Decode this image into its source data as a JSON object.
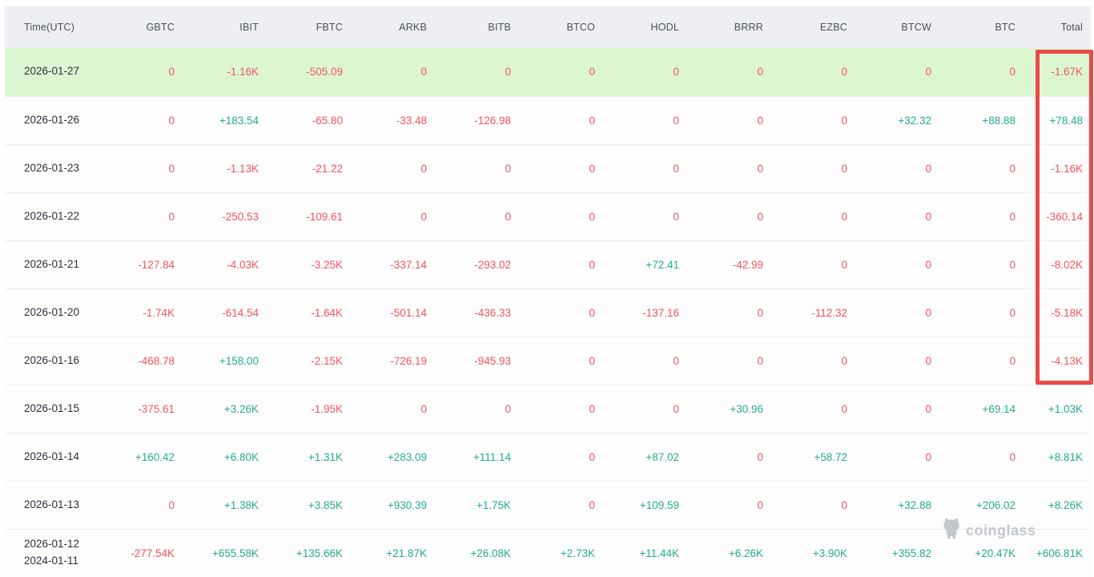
{
  "table": {
    "columns": [
      "Time(UTC)",
      "GBTC",
      "IBIT",
      "FBTC",
      "ARKB",
      "BITB",
      "BTCO",
      "HODL",
      "BRRR",
      "EZBC",
      "BTCW",
      "BTC",
      "Total"
    ],
    "rows": [
      {
        "dates": [
          "2026-01-27"
        ],
        "highlighted": true,
        "values": [
          "0",
          "-1.16K",
          "-505.09",
          "0",
          "0",
          "0",
          "0",
          "0",
          "0",
          "0",
          "0",
          "-1.67K"
        ]
      },
      {
        "dates": [
          "2026-01-26"
        ],
        "highlighted": false,
        "values": [
          "0",
          "+183.54",
          "-65.80",
          "-33.48",
          "-126.98",
          "0",
          "0",
          "0",
          "0",
          "+32.32",
          "+88.88",
          "+78.48"
        ]
      },
      {
        "dates": [
          "2026-01-23"
        ],
        "highlighted": false,
        "values": [
          "0",
          "-1.13K",
          "-21.22",
          "0",
          "0",
          "0",
          "0",
          "0",
          "0",
          "0",
          "0",
          "-1.16K"
        ]
      },
      {
        "dates": [
          "2026-01-22"
        ],
        "highlighted": false,
        "values": [
          "0",
          "-250.53",
          "-109.61",
          "0",
          "0",
          "0",
          "0",
          "0",
          "0",
          "0",
          "0",
          "-360.14"
        ]
      },
      {
        "dates": [
          "2026-01-21"
        ],
        "highlighted": false,
        "values": [
          "-127.84",
          "-4.03K",
          "-3.25K",
          "-337.14",
          "-293.02",
          "0",
          "+72.41",
          "-42.99",
          "0",
          "0",
          "0",
          "-8.02K"
        ]
      },
      {
        "dates": [
          "2026-01-20"
        ],
        "highlighted": false,
        "values": [
          "-1.74K",
          "-614.54",
          "-1.64K",
          "-501.14",
          "-436.33",
          "0",
          "-137.16",
          "0",
          "-112.32",
          "0",
          "0",
          "-5.18K"
        ]
      },
      {
        "dates": [
          "2026-01-16"
        ],
        "highlighted": false,
        "values": [
          "-468.78",
          "+158.00",
          "-2.15K",
          "-726.19",
          "-945.93",
          "0",
          "0",
          "0",
          "0",
          "0",
          "0",
          "-4.13K"
        ]
      },
      {
        "dates": [
          "2026-01-15"
        ],
        "highlighted": false,
        "values": [
          "-375.61",
          "+3.26K",
          "-1.95K",
          "0",
          "0",
          "0",
          "0",
          "+30.96",
          "0",
          "0",
          "+69.14",
          "+1.03K"
        ]
      },
      {
        "dates": [
          "2026-01-14"
        ],
        "highlighted": false,
        "values": [
          "+160.42",
          "+6.80K",
          "+1.31K",
          "+283.09",
          "+111.14",
          "0",
          "+87.02",
          "0",
          "+58.72",
          "0",
          "0",
          "+8.81K"
        ]
      },
      {
        "dates": [
          "2026-01-13"
        ],
        "highlighted": false,
        "values": [
          "0",
          "+1.38K",
          "+3.85K",
          "+930.39",
          "+1.75K",
          "0",
          "+109.59",
          "0",
          "0",
          "+32.88",
          "+206.02",
          "+8.26K"
        ]
      },
      {
        "dates": [
          "2026-01-12",
          "2024-01-11"
        ],
        "highlighted": false,
        "values": [
          "-277.54K",
          "+655.58K",
          "+135.66K",
          "+21.87K",
          "+26.08K",
          "+2.73K",
          "+11.44K",
          "+6.26K",
          "+3.90K",
          "+355.82",
          "+20.47K",
          "+606.81K"
        ]
      }
    ]
  },
  "annotation": {
    "description": "Red box drawn around the Total column values for rows 2026-01-27 through 2026-01-16"
  },
  "watermark": {
    "text": "coinglass"
  },
  "colors": {
    "positive": "#26ab92",
    "negative": "#f2555a",
    "header_background": "#edeff3",
    "highlighted_row_background": "#ddf6d2",
    "annotation_border": "#ec4848"
  }
}
